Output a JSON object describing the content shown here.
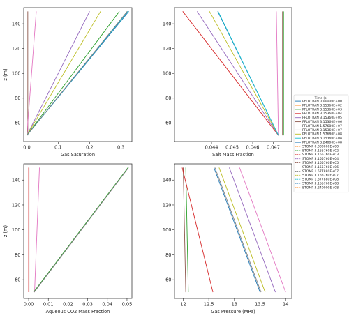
{
  "legend": {
    "title": "Time (s)",
    "entries": [
      {
        "label": "PFLOTRAN 0.00000E+00",
        "color": "#1f77b4",
        "dash": "solid"
      },
      {
        "label": "PFLOTRAN 3.15360E+02",
        "color": "#ff7f0e",
        "dash": "solid"
      },
      {
        "label": "PFLOTRAN 3.15360E+03",
        "color": "#2ca02c",
        "dash": "solid"
      },
      {
        "label": "PFLOTRAN 3.15360E+04",
        "color": "#d62728",
        "dash": "solid"
      },
      {
        "label": "PFLOTRAN 3.15360E+05",
        "color": "#9467bd",
        "dash": "solid"
      },
      {
        "label": "PFLOTRAN 3.15360E+06",
        "color": "#8c564b",
        "dash": "solid"
      },
      {
        "label": "PFLOTRAN 1.57680E+07",
        "color": "#e377c2",
        "dash": "solid"
      },
      {
        "label": "PFLOTRAN 3.15360E+07",
        "color": "#7f7f7f",
        "dash": "solid"
      },
      {
        "label": "PFLOTRAN 1.57680E+08",
        "color": "#bcbd22",
        "dash": "solid"
      },
      {
        "label": "PFLOTRAN 3.15360E+08",
        "color": "#17becf",
        "dash": "solid"
      },
      {
        "label": "PFLOTRAN 3.24000E+08",
        "color": "#1f77b4",
        "dash": "solid"
      },
      {
        "label": "STOMP 0.000000E+00",
        "color": "#ff7f0e",
        "dash": "dashed"
      },
      {
        "label": "STOMP 3.155760E+02",
        "color": "#2ca02c",
        "dash": "dashed"
      },
      {
        "label": "STOMP 3.155760E+03",
        "color": "#d62728",
        "dash": "dashed"
      },
      {
        "label": "STOMP 3.155760E+04",
        "color": "#9467bd",
        "dash": "dashed"
      },
      {
        "label": "STOMP 3.155760E+05",
        "color": "#8c564b",
        "dash": "dashed"
      },
      {
        "label": "STOMP 3.155760E+06",
        "color": "#e377c2",
        "dash": "dashed"
      },
      {
        "label": "STOMP 1.577880E+07",
        "color": "#7f7f7f",
        "dash": "dashed"
      },
      {
        "label": "STOMP 3.155760E+07",
        "color": "#bcbd22",
        "dash": "dashed"
      },
      {
        "label": "STOMP 1.577880E+08",
        "color": "#17becf",
        "dash": "dashed"
      },
      {
        "label": "STOMP 3.155760E+08",
        "color": "#1f77b4",
        "dash": "dashed"
      },
      {
        "label": "STOMP 3.240000E+08",
        "color": "#ff7f0e",
        "dash": "dashed"
      }
    ]
  },
  "chart_data": [
    {
      "type": "line",
      "xlabel": "Gas Saturation",
      "ylabel": "z (m)",
      "xlim": [
        -0.01,
        0.335
      ],
      "ylim": [
        45,
        153
      ],
      "xticks": [
        0.0,
        0.1,
        0.2,
        0.3
      ],
      "xtick_labels": [
        "0.0",
        "0.1",
        "0.2",
        "0.3"
      ],
      "yticks": [
        60,
        80,
        100,
        120,
        140
      ],
      "ytick_labels": [
        "60",
        "80",
        "100",
        "120",
        "140"
      ],
      "series": [
        {
          "color": "#d62728",
          "points": [
            [
              0.0,
              50
            ],
            [
              0.0,
              150
            ]
          ]
        },
        {
          "color": "#8c564b",
          "points": [
            [
              0.003,
              50
            ],
            [
              0.003,
              150
            ]
          ]
        },
        {
          "color": "#e377c2",
          "points": [
            [
              0.0,
              50
            ],
            [
              0.03,
              150
            ]
          ]
        },
        {
          "color": "#9467bd",
          "points": [
            [
              0.0,
              50
            ],
            [
              0.2,
              150
            ]
          ]
        },
        {
          "color": "#bcbd22",
          "points": [
            [
              0.0,
              50
            ],
            [
              0.235,
              150
            ]
          ]
        },
        {
          "color": "#2ca02c",
          "points": [
            [
              0.0,
              50
            ],
            [
              0.295,
              150
            ]
          ]
        },
        {
          "color": "#1f77b4",
          "points": [
            [
              0.0,
              50
            ],
            [
              0.325,
              150
            ]
          ]
        },
        {
          "color": "#17becf",
          "points": [
            [
              0.0,
              50
            ],
            [
              0.322,
              150
            ]
          ]
        },
        {
          "color": "#7f7f7f",
          "points": [
            [
              0.0,
              50
            ],
            [
              0.32,
              150
            ]
          ]
        }
      ]
    },
    {
      "type": "line",
      "xlabel": "Salt Mass Fraction",
      "ylabel": "",
      "xlim": [
        0.0422,
        0.0479
      ],
      "ylim": [
        45,
        153
      ],
      "xticks": [
        0.044,
        0.045,
        0.046,
        0.047
      ],
      "xtick_labels": [
        "0.044",
        "0.045",
        "0.046",
        "0.047"
      ],
      "yticks": [
        60,
        80,
        100,
        120,
        140
      ],
      "ytick_labels": [
        "60",
        "80",
        "100",
        "120",
        "140"
      ],
      "series": [
        {
          "color": "#2ca02c",
          "points": [
            [
              0.0475,
              50
            ],
            [
              0.0475,
              150
            ]
          ]
        },
        {
          "color": "#8c564b",
          "points": [
            [
              0.04745,
              50
            ],
            [
              0.04745,
              150
            ]
          ]
        },
        {
          "color": "#e377c2",
          "points": [
            [
              0.04725,
              50
            ],
            [
              0.04715,
              150
            ]
          ]
        },
        {
          "color": "#d62728",
          "points": [
            [
              0.04725,
              50
            ],
            [
              0.0426,
              150
            ]
          ]
        },
        {
          "color": "#9467bd",
          "points": [
            [
              0.04725,
              50
            ],
            [
              0.0433,
              150
            ]
          ]
        },
        {
          "color": "#bcbd22",
          "points": [
            [
              0.04725,
              50
            ],
            [
              0.0439,
              150
            ]
          ]
        },
        {
          "color": "#1f77b4",
          "points": [
            [
              0.04725,
              50
            ],
            [
              0.0443,
              150
            ]
          ]
        },
        {
          "color": "#17becf",
          "points": [
            [
              0.04725,
              50
            ],
            [
              0.04432,
              150
            ]
          ]
        }
      ]
    },
    {
      "type": "line",
      "xlabel": "Aqueous CO2 Mass Fraction",
      "ylabel": "z (m)",
      "xlim": [
        -0.0025,
        0.0525
      ],
      "ylim": [
        45,
        153
      ],
      "xticks": [
        0.0,
        0.01,
        0.02,
        0.03,
        0.04,
        0.05
      ],
      "xtick_labels": [
        "0.00",
        "0.01",
        "0.02",
        "0.03",
        "0.04",
        "0.05"
      ],
      "yticks": [
        60,
        80,
        100,
        120,
        140
      ],
      "ytick_labels": [
        "60",
        "80",
        "100",
        "120",
        "140"
      ],
      "series": [
        {
          "color": "#8c564b",
          "points": [
            [
              0.0002,
              50
            ],
            [
              0.0002,
              150
            ]
          ]
        },
        {
          "color": "#e377c2",
          "points": [
            [
              0.003,
              50
            ],
            [
              0.0055,
              150
            ]
          ]
        },
        {
          "color": "#2ca02c",
          "points": [
            [
              0.0025,
              50
            ],
            [
              0.0505,
              150
            ]
          ]
        },
        {
          "color": "#7f7f7f",
          "points": [
            [
              0.0028,
              50
            ],
            [
              0.0508,
              150
            ]
          ]
        },
        {
          "color": "#d62728",
          "points": [
            [
              0.0,
              50
            ],
            [
              0.0,
              150
            ]
          ]
        }
      ]
    },
    {
      "type": "line",
      "xlabel": "Gas Pressure (MPa)",
      "ylabel": "",
      "xlim": [
        11.83,
        14.12
      ],
      "ylim": [
        45,
        153
      ],
      "xticks": [
        12,
        12.5,
        13,
        13.5,
        14
      ],
      "xtick_labels": [
        "12",
        "12.5",
        "13",
        "13.5",
        "14"
      ],
      "yticks": [
        60,
        80,
        100,
        120,
        140
      ],
      "ytick_labels": [
        "60",
        "80",
        "100",
        "120",
        "140"
      ],
      "series": [
        {
          "color": "#8c564b",
          "points": [
            [
              12.05,
              50
            ],
            [
              12.0,
              150
            ]
          ]
        },
        {
          "color": "#2ca02c",
          "points": [
            [
              12.1,
              50
            ],
            [
              12.05,
              150
            ]
          ]
        },
        {
          "color": "#d62728",
          "points": [
            [
              12.58,
              50
            ],
            [
              11.98,
              150
            ]
          ]
        },
        {
          "color": "#1f77b4",
          "points": [
            [
              13.5,
              50
            ],
            [
              12.6,
              150
            ]
          ]
        },
        {
          "color": "#bcbd22",
          "points": [
            [
              13.6,
              50
            ],
            [
              12.7,
              150
            ]
          ]
        },
        {
          "color": "#9467bd",
          "points": [
            [
              13.8,
              50
            ],
            [
              12.9,
              150
            ]
          ]
        },
        {
          "color": "#e377c2",
          "points": [
            [
              14.0,
              50
            ],
            [
              13.1,
              150
            ]
          ]
        },
        {
          "color": "#7f7f7f",
          "points": [
            [
              13.52,
              50
            ],
            [
              12.62,
              150
            ]
          ]
        }
      ]
    }
  ]
}
